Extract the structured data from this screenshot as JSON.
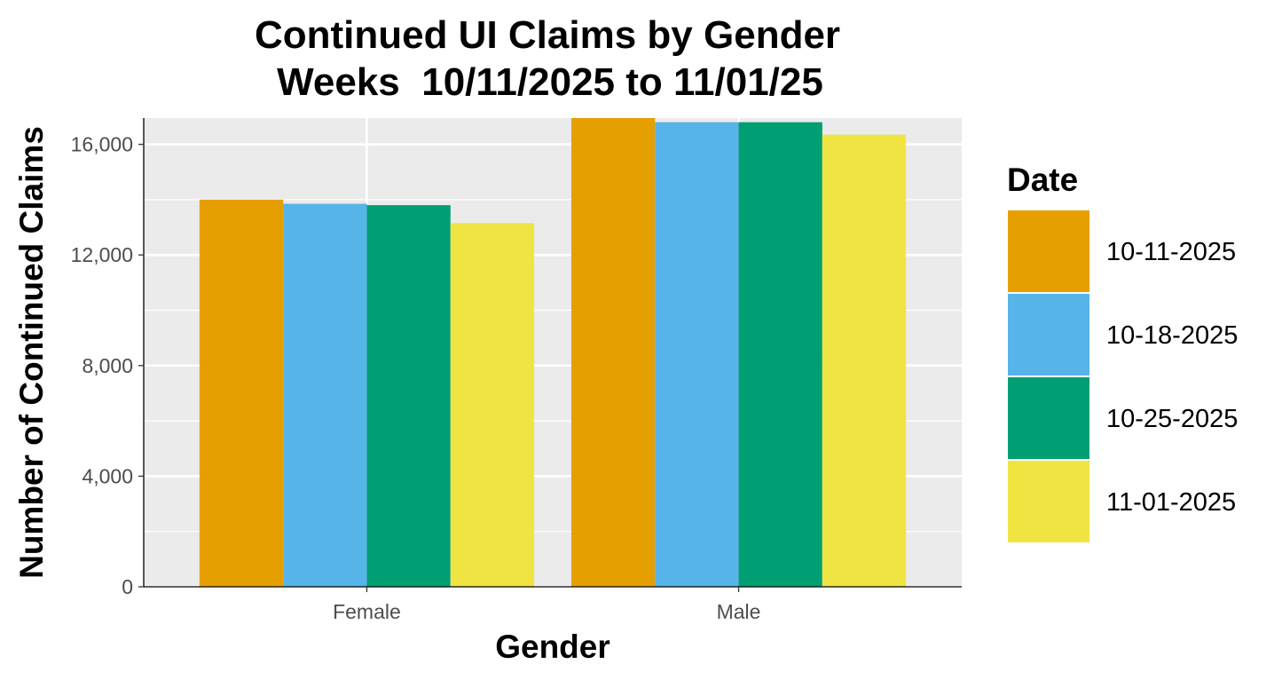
{
  "chart_data": {
    "type": "bar",
    "title": "Continued UI Claims by Gender",
    "subtitle": "Weeks  10/11/2025 to 11/01/25",
    "xlabel": "Gender",
    "ylabel": "Number of Continued Claims",
    "categories": [
      "Female",
      "Male"
    ],
    "series": [
      {
        "name": "10-11-2025",
        "color": "#E69F00",
        "values": [
          14000,
          16950
        ]
      },
      {
        "name": "10-18-2025",
        "color": "#56B4E9",
        "values": [
          13850,
          16800
        ]
      },
      {
        "name": "10-25-2025",
        "color": "#009E73",
        "values": [
          13800,
          16800
        ]
      },
      {
        "name": "11-01-2025",
        "color": "#F0E442",
        "values": [
          13150,
          16350
        ]
      }
    ],
    "ylim": [
      0,
      16950
    ],
    "yticks": [
      0,
      4000,
      8000,
      12000,
      16000
    ],
    "ytick_labels": [
      "0",
      "4,000",
      "8,000",
      "12,000",
      "16,000"
    ],
    "legend": {
      "title": "Date",
      "position": "right"
    },
    "grid": true,
    "panel_background": "#EBEBEB"
  }
}
